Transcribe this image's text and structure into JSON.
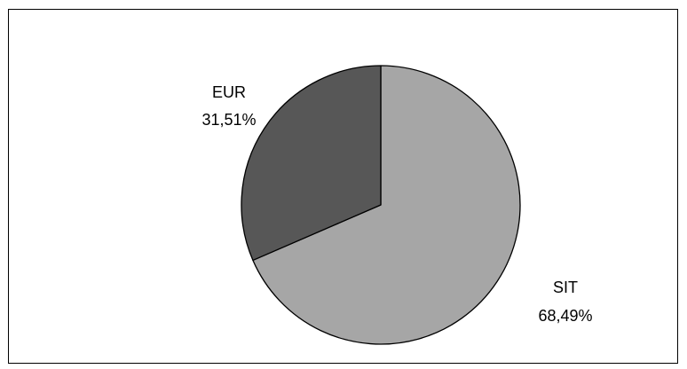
{
  "chart_data": {
    "type": "pie",
    "title": "",
    "slices": [
      {
        "label": "SIT",
        "value": 68.49,
        "display": "68,49%",
        "color": "#a6a6a6"
      },
      {
        "label": "EUR",
        "value": 31.51,
        "display": "31,51%",
        "color": "#575757"
      }
    ],
    "legend": "none",
    "start_angle_deg": 0,
    "direction": "clockwise"
  }
}
